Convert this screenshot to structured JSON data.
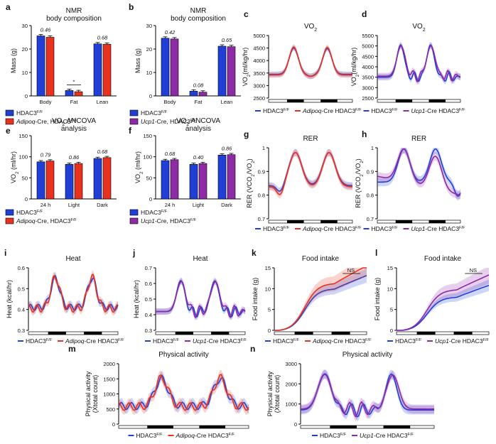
{
  "colors": {
    "blue": "#1f3fd6",
    "red": "#e8321f",
    "purple": "#8e2aa6",
    "black": "#000000"
  },
  "legend": {
    "ctrl_base": "HDAC3",
    "ctrl_sup": "F/F",
    "adipoq_it": "Adipoq",
    "adipoq_rest": "-Cre HDAC3",
    "adipoq_rest_comma": "-Cre, HDAC3",
    "ucp1_it": "Ucp1",
    "ucp1_rest": "-Cre HDAC3",
    "ucp1_rest_comma": "-Cre, HDAC3",
    "sup": "F/F"
  },
  "chart_data": [
    {
      "id": "a",
      "label": "a",
      "type": "bar",
      "title_lines": [
        "NMR",
        "body composition"
      ],
      "ylabel": "Mass (g)",
      "ylim": [
        0,
        30
      ],
      "yticks": [
        0,
        10,
        20,
        30
      ],
      "categories": [
        "Body",
        "Fat",
        "Lean"
      ],
      "series": [
        {
          "name": "HDAC3F/F",
          "color": "blue",
          "values": [
            25.6,
            2.3,
            22.2
          ]
        },
        {
          "name": "Adipoq-Cre, HDAC3F/F",
          "color": "red",
          "values": [
            25.0,
            1.8,
            22.0
          ]
        }
      ],
      "pvalues": [
        "0.46",
        "*",
        "0.68"
      ],
      "legend_variant": "adipoq_comma"
    },
    {
      "id": "b",
      "label": "b",
      "type": "bar",
      "title_lines": [
        "NMR",
        "body composition"
      ],
      "ylabel": "Mass (g)",
      "ylim": [
        0,
        30
      ],
      "yticks": [
        0,
        10,
        20,
        30
      ],
      "categories": [
        "Body",
        "Fat",
        "Lean"
      ],
      "series": [
        {
          "name": "HDAC3F/F",
          "color": "blue",
          "values": [
            24.6,
            2.0,
            21.2
          ]
        },
        {
          "name": "Ucp1-Cre, HDAC3F/F",
          "color": "purple",
          "values": [
            24.3,
            1.6,
            21.0
          ]
        }
      ],
      "pvalues": [
        "0.42",
        "0.08",
        "0.65"
      ],
      "legend_variant": "ucp1_comma"
    },
    {
      "id": "e",
      "label": "e",
      "type": "bar",
      "title_lines": [
        "VO2 ANCOVA",
        "analysis"
      ],
      "ylabel": "VO2 (ml/hr)",
      "ylim": [
        0,
        150
      ],
      "yticks": [
        0,
        50,
        100,
        150
      ],
      "categories": [
        "24 h",
        "Light",
        "Dark"
      ],
      "series": [
        {
          "name": "HDAC3F/F",
          "color": "blue",
          "values": [
            88,
            82,
            96
          ]
        },
        {
          "name": "Adipoq-Cre, HDAC3F/F",
          "color": "red",
          "values": [
            90,
            84,
            98
          ]
        }
      ],
      "pvalues": [
        "0.79",
        "0.86",
        "0.68"
      ],
      "legend_variant": "adipoq_comma"
    },
    {
      "id": "f",
      "label": "f",
      "type": "bar",
      "title_lines": [
        "VO2 ANCOVA",
        "analysis"
      ],
      "ylabel": "VO2 (ml/hr)",
      "ylim": [
        0,
        150
      ],
      "yticks": [
        0,
        50,
        100,
        150
      ],
      "categories": [
        "24 h",
        "Light",
        "Dark"
      ],
      "series": [
        {
          "name": "HDAC3F/F",
          "color": "blue",
          "values": [
            91,
            82,
            104
          ]
        },
        {
          "name": "Ucp1-Cre, HDAC3F/F",
          "color": "purple",
          "values": [
            93,
            84,
            105
          ]
        }
      ],
      "pvalues": [
        "0.68",
        "0.40",
        "0.86"
      ],
      "legend_variant": "ucp1_comma"
    },
    {
      "id": "c",
      "label": "c",
      "type": "line",
      "title": "VO2",
      "ylabel": "VO2(ml/kg/hr)",
      "ylim": [
        2500,
        5000
      ],
      "yticks": [
        2500,
        3000,
        3500,
        4000,
        4500,
        5000
      ],
      "shape": "vo2_adipoq",
      "sem": 110,
      "series": [
        {
          "color": "blue"
        },
        {
          "color": "red"
        }
      ],
      "legend_variant": "adipoq"
    },
    {
      "id": "d",
      "label": "d",
      "type": "line",
      "title": "VO2",
      "ylabel": "VO2(ml/kg/hr)",
      "ylim": [
        2500,
        5500
      ],
      "yticks": [
        2500,
        3000,
        3500,
        4000,
        4500,
        5000,
        5500
      ],
      "shape": "vo2_ucp1",
      "sem": 150,
      "series": [
        {
          "color": "blue"
        },
        {
          "color": "purple"
        }
      ],
      "legend_variant": "ucp1"
    },
    {
      "id": "g",
      "label": "g",
      "type": "line",
      "title": "RER",
      "ylabel": "RER (VCO2/VO2)",
      "ylim": [
        0.7,
        1.0
      ],
      "yticks": [
        0.7,
        0.8,
        0.9,
        1.0
      ],
      "shape": "rer_adipoq",
      "sem": 0.015,
      "series": [
        {
          "color": "blue"
        },
        {
          "color": "red"
        }
      ],
      "legend_variant": "adipoq"
    },
    {
      "id": "h",
      "label": "h",
      "type": "line",
      "title": "RER",
      "ylabel": "RER (VCO2/VO2)",
      "ylim": [
        0.7,
        1.0
      ],
      "yticks": [
        0.7,
        0.8,
        0.9,
        1.0
      ],
      "shape": "rer_ucp1",
      "sem": 0.018,
      "series": [
        {
          "color": "blue"
        },
        {
          "color": "purple"
        }
      ],
      "legend_variant": "ucp1"
    },
    {
      "id": "i",
      "label": "i",
      "type": "line",
      "title": "Heat",
      "ylabel": "Heat (kcal/hr)",
      "ylim": [
        0.3,
        0.6
      ],
      "yticks": [
        0.3,
        0.4,
        0.5,
        0.6
      ],
      "shape": "heat_adipoq",
      "sem": 0.018,
      "series": [
        {
          "color": "blue"
        },
        {
          "color": "red"
        }
      ],
      "legend_variant": "adipoq"
    },
    {
      "id": "j",
      "label": "j",
      "type": "line",
      "title": "Heat",
      "ylabel": "Heat (kcal/hr)",
      "ylim": [
        0.3,
        0.7
      ],
      "yticks": [
        0.3,
        0.4,
        0.5,
        0.6,
        0.7
      ],
      "shape": "heat_ucp1",
      "sem": 0.02,
      "series": [
        {
          "color": "blue"
        },
        {
          "color": "purple"
        }
      ],
      "legend_variant": "ucp1"
    },
    {
      "id": "k",
      "label": "k",
      "type": "line",
      "title": "Food intake",
      "ylabel": "Food intake (g)",
      "ylim": [
        0,
        15
      ],
      "yticks": [
        0,
        5,
        10,
        15
      ],
      "shape": "food_adipoq",
      "sem": 0,
      "series": [
        {
          "color": "blue"
        },
        {
          "color": "red"
        }
      ],
      "ns": "NS",
      "legend_variant": "adipoq"
    },
    {
      "id": "l",
      "label": "l",
      "type": "line",
      "title": "Food intake",
      "ylabel": "Food intake (g)",
      "ylim": [
        0,
        15
      ],
      "yticks": [
        0,
        5,
        10,
        15
      ],
      "shape": "food_ucp1",
      "sem": 0,
      "series": [
        {
          "color": "blue"
        },
        {
          "color": "purple"
        }
      ],
      "ns": "NS",
      "legend_variant": "ucp1"
    },
    {
      "id": "m",
      "label": "m",
      "type": "line",
      "title": "Physical activity",
      "ylabel_lines": [
        "Physical activity",
        "(Xtotal count)"
      ],
      "ylim": [
        0,
        2000
      ],
      "yticks": [
        0,
        500,
        1000,
        1500,
        2000
      ],
      "shape": "pa_adipoq",
      "sem": 150,
      "series": [
        {
          "color": "blue"
        },
        {
          "color": "red"
        }
      ],
      "legend_variant": "adipoq"
    },
    {
      "id": "n",
      "label": "n",
      "type": "line",
      "title": "Physical activity",
      "ylabel_lines": [
        "Physical activity",
        "(Xtotal count)"
      ],
      "ylim": [
        0,
        3000
      ],
      "yticks": [
        0,
        1000,
        2000,
        3000
      ],
      "shape": "pa_ucp1",
      "sem": 220,
      "series": [
        {
          "color": "blue"
        },
        {
          "color": "purple"
        }
      ],
      "legend_variant": "ucp1"
    }
  ]
}
